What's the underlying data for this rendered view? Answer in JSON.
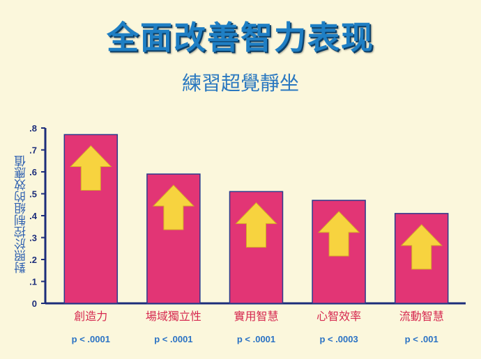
{
  "page": {
    "title": "全面改善智力表现",
    "subtitle": "練習超覺靜坐"
  },
  "colors": {
    "background": "#fbf7dc",
    "bar": "#e23575",
    "bar_outline": "#2b3a8c",
    "arrow": "#f7d33f",
    "axis": "#1c2d7a",
    "category_label": "#d6284f",
    "pvalue": "#2a72c4"
  },
  "chart_data": {
    "type": "bar",
    "title": "全面改善智力表现",
    "subtitle": "練習超覺靜坐",
    "ylabel": "對照於控制組的效應值",
    "xlabel": "",
    "ylim": [
      0,
      0.8
    ],
    "yticks": [
      "0",
      ".1",
      ".2",
      ".3",
      ".4",
      ".5",
      ".6",
      ".7",
      ".8"
    ],
    "categories": [
      "創造力",
      "場域獨立性",
      "實用智慧",
      "心智效率",
      "流動智慧"
    ],
    "values": [
      0.77,
      0.59,
      0.51,
      0.47,
      0.41
    ],
    "annotations": [
      "p < .0001",
      "p < .0001",
      "p < .0001",
      "p < .0003",
      "p < .001"
    ],
    "grid": false,
    "legend": "none",
    "markers": "up-arrow"
  }
}
